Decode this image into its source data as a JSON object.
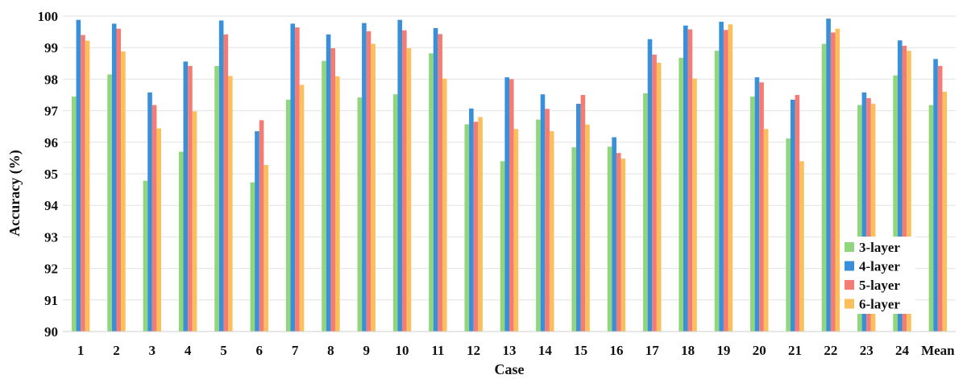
{
  "chart_data": {
    "type": "bar",
    "title": "",
    "xlabel": "Case",
    "ylabel": "Accuracy (%)",
    "ylim": [
      90,
      100
    ],
    "yticks": [
      "90",
      "91",
      "92",
      "93",
      "94",
      "95",
      "96",
      "97",
      "98",
      "99",
      "100"
    ],
    "grid": true,
    "legend_position": "bottom-right",
    "categories": [
      "1",
      "2",
      "3",
      "4",
      "5",
      "6",
      "7",
      "8",
      "9",
      "10",
      "11",
      "12",
      "13",
      "14",
      "15",
      "16",
      "17",
      "18",
      "19",
      "20",
      "21",
      "22",
      "23",
      "24",
      "Mean"
    ],
    "series": [
      {
        "name": "3-layer",
        "color": "#8fd67d",
        "values": [
          97.45,
          98.15,
          94.78,
          95.7,
          98.42,
          94.73,
          97.35,
          98.58,
          97.42,
          97.52,
          98.82,
          96.57,
          95.4,
          96.72,
          95.84,
          95.86,
          97.55,
          98.68,
          98.9,
          97.45,
          96.12,
          99.12,
          97.18,
          98.12,
          97.18
        ]
      },
      {
        "name": "4-layer",
        "color": "#3a8fd9",
        "values": [
          99.88,
          99.76,
          97.58,
          98.56,
          99.86,
          96.35,
          99.76,
          99.42,
          99.78,
          99.88,
          99.62,
          97.07,
          98.06,
          97.52,
          97.22,
          96.16,
          99.27,
          99.7,
          99.82,
          98.06,
          97.35,
          99.92,
          97.58,
          99.23,
          98.64
        ]
      },
      {
        "name": "5-layer",
        "color": "#f47c74",
        "values": [
          99.4,
          99.6,
          97.18,
          98.42,
          99.42,
          96.7,
          99.64,
          98.98,
          99.52,
          99.55,
          99.43,
          96.65,
          98.0,
          97.06,
          97.5,
          95.66,
          98.78,
          99.58,
          99.56,
          97.9,
          97.5,
          99.48,
          97.4,
          99.06,
          98.42
        ]
      },
      {
        "name": "6-layer",
        "color": "#fbbf5c",
        "values": [
          99.22,
          98.88,
          96.44,
          96.98,
          98.1,
          95.28,
          97.82,
          98.09,
          99.12,
          98.98,
          98.02,
          96.8,
          96.42,
          96.35,
          96.56,
          95.48,
          98.52,
          98.02,
          99.74,
          96.42,
          95.4,
          99.6,
          97.22,
          98.9,
          97.6
        ]
      }
    ]
  }
}
